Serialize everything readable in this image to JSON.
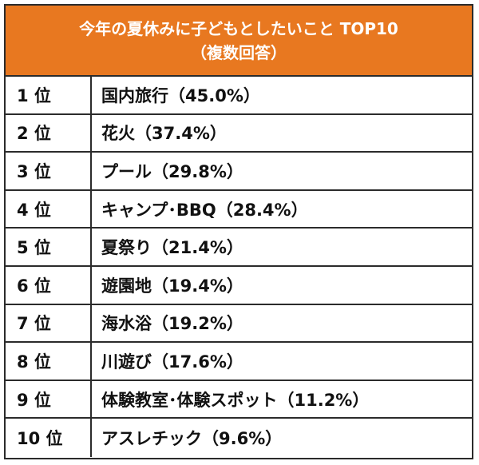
{
  "header": {
    "title": "今年の夏休みに子どもとしたいこと TOP10",
    "subtitle": "（複数回答）"
  },
  "rows": [
    {
      "rank": "1 位",
      "item": "国内旅行（45.0%）"
    },
    {
      "rank": "2 位",
      "item": "花火（37.4%）"
    },
    {
      "rank": "3 位",
      "item": "プール（29.8%）"
    },
    {
      "rank": "4 位",
      "item": "キャンプ･BBQ（28.4%）"
    },
    {
      "rank": "5 位",
      "item": "夏祭り（21.4%）"
    },
    {
      "rank": "6 位",
      "item": "遊園地（19.4%）"
    },
    {
      "rank": "7 位",
      "item": "海水浴（19.2%）"
    },
    {
      "rank": "8 位",
      "item": "川遊び（17.6%）"
    },
    {
      "rank": "9 位",
      "item": "体験教室･体験スポット（11.2%）"
    },
    {
      "rank": "10 位",
      "item": "アスレチック（9.6%）"
    }
  ],
  "colors": {
    "header_bg": "#e87820",
    "header_text": "#ffffff",
    "border": "#2b2b2b"
  }
}
